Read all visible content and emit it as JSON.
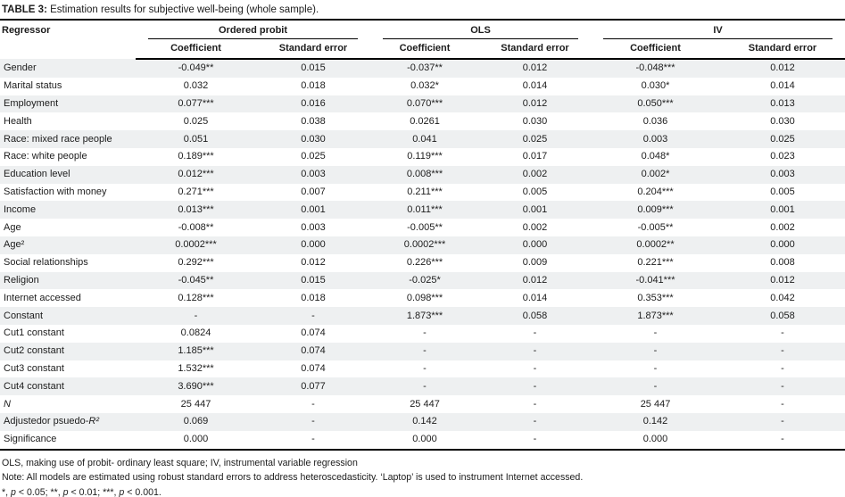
{
  "title": {
    "bold": "TABLE 3:",
    "rest": " Estimation results for subjective well-being (whole sample)."
  },
  "table": {
    "corner_header": "Regressor",
    "groups": [
      "Ordered probit",
      "OLS",
      "IV"
    ],
    "subheaders": [
      "Coefficient",
      "Standard error",
      "Coefficient",
      "Standard error",
      "Coefficient",
      "Standard error"
    ],
    "rows": [
      {
        "label": "Gender",
        "values": [
          "-0.049**",
          "0.015",
          "-0.037**",
          "0.012",
          "-0.048***",
          "0.012"
        ]
      },
      {
        "label": "Marital status",
        "values": [
          "0.032",
          "0.018",
          "0.032*",
          "0.014",
          "0.030*",
          "0.014"
        ]
      },
      {
        "label": "Employment",
        "values": [
          "0.077***",
          "0.016",
          "0.070***",
          "0.012",
          "0.050***",
          "0.013"
        ]
      },
      {
        "label": "Health",
        "values": [
          "0.025",
          "0.038",
          "0.0261",
          "0.030",
          "0.036",
          "0.030"
        ]
      },
      {
        "label": "Race: mixed race people",
        "values": [
          "0.051",
          "0.030",
          "0.041",
          "0.025",
          "0.003",
          "0.025"
        ]
      },
      {
        "label": "Race: white people",
        "values": [
          "0.189***",
          "0.025",
          "0.119***",
          "0.017",
          "0.048*",
          "0.023"
        ]
      },
      {
        "label": "Education level",
        "values": [
          "0.012***",
          "0.003",
          "0.008***",
          "0.002",
          "0.002*",
          "0.003"
        ]
      },
      {
        "label": "Satisfaction with money",
        "values": [
          "0.271***",
          "0.007",
          "0.211***",
          "0.005",
          "0.204***",
          "0.005"
        ]
      },
      {
        "label": "Income",
        "values": [
          "0.013***",
          "0.001",
          "0.011***",
          "0.001",
          "0.009***",
          "0.001"
        ]
      },
      {
        "label": "Age",
        "values": [
          "-0.008**",
          "0.003",
          "-0.005**",
          "0.002",
          "-0.005**",
          "0.002"
        ]
      },
      {
        "label": "Age²",
        "values": [
          "0.0002***",
          "0.000",
          "0.0002***",
          "0.000",
          "0.0002**",
          "0.000"
        ]
      },
      {
        "label": "Social relationships",
        "values": [
          "0.292***",
          "0.012",
          "0.226***",
          "0.009",
          "0.221***",
          "0.008"
        ]
      },
      {
        "label": "Religion",
        "values": [
          "-0.045**",
          "0.015",
          "-0.025*",
          "0.012",
          "-0.041***",
          "0.012"
        ]
      },
      {
        "label": "Internet accessed",
        "values": [
          "0.128***",
          "0.018",
          "0.098***",
          "0.014",
          "0.353***",
          "0.042"
        ]
      },
      {
        "label": "Constant",
        "values": [
          "-",
          "-",
          "1.873***",
          "0.058",
          "1.873***",
          "0.058"
        ]
      },
      {
        "label": "Cut1 constant",
        "values": [
          "0.0824",
          "0.074",
          "-",
          "-",
          "-",
          "-"
        ]
      },
      {
        "label": "Cut2 constant",
        "values": [
          "1.185***",
          "0.074",
          "-",
          "-",
          "-",
          "-"
        ]
      },
      {
        "label": "Cut3 constant",
        "values": [
          "1.532***",
          "0.074",
          "-",
          "-",
          "-",
          "-"
        ]
      },
      {
        "label": "Cut4 constant",
        "values": [
          "3.690***",
          "0.077",
          "-",
          "-",
          "-",
          "-"
        ]
      },
      {
        "label": "N",
        "em": "N",
        "values": [
          "25 447",
          "-",
          "25 447",
          "-",
          "25 447",
          "-"
        ]
      },
      {
        "label": "Adjustedor psuedo-R²",
        "em": "R²",
        "values": [
          "0.069",
          "-",
          "0.142",
          "-",
          "0.142",
          "-"
        ]
      },
      {
        "label": "Significance",
        "values": [
          "0.000",
          "-",
          "0.000",
          "-",
          "0.000",
          "-"
        ]
      }
    ]
  },
  "footnotes": [
    {
      "text": "OLS, making use of probit- ordinary least square; IV, instrumental variable regression"
    },
    {
      "text": "Note: All models are estimated using robust standard errors to address heteroscedasticity. ‘Laptop’ is used to instrument Internet accessed."
    },
    {
      "text": "*, p < 0.05; **, p < 0.01; ***, p < 0.001.",
      "italicize_p": true
    }
  ],
  "colors": {
    "stripe": "#eef0f1",
    "rule": "#000000",
    "text": "#1c1c1c"
  }
}
